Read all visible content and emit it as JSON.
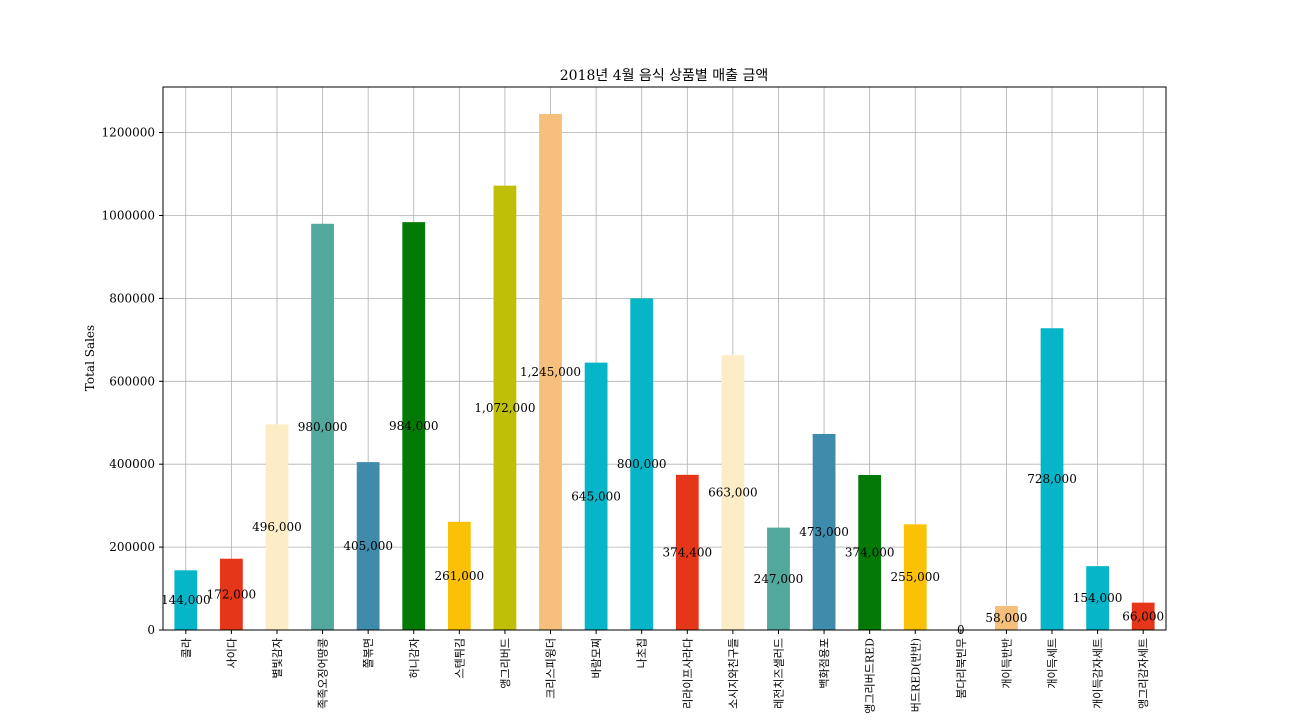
{
  "chart_data": {
    "type": "bar",
    "title": "2018년 4월 음식 상품별 매출 금액",
    "xlabel": "",
    "ylabel": "Total Sales",
    "ylim": [
      0,
      1310000
    ],
    "yticks": [
      0,
      200000,
      400000,
      600000,
      800000,
      1000000,
      1200000
    ],
    "grid": true,
    "categories": [
      "콜라",
      "사이다",
      "별빛감자",
      "족족오징어땅콩",
      "쫄볶면",
      "허니감자",
      "스텐튀김",
      "앵그리버드",
      "크리스피윙더",
      "바람모찌",
      "나초칩",
      "리라이프사라다",
      "소시지와친구들",
      "레전치즈샐러드",
      "백화점용포",
      "앵그리버드RED",
      "버드RED(반반)",
      "붐다리북빈무",
      "개이득반반",
      "개이득세트",
      "개이득감자세트",
      "앵그리감자세트"
    ],
    "values": [
      144000,
      172000,
      496000,
      980000,
      405000,
      984000,
      261000,
      1072000,
      1245000,
      645000,
      800000,
      374400,
      663000,
      247000,
      473000,
      374000,
      255000,
      0,
      58000,
      728000,
      154000,
      66000
    ],
    "value_labels": [
      "144,000",
      "172,000",
      "496,000",
      "980,000",
      "405,000",
      "984,000",
      "261,000",
      "1,072,000",
      "1,245,000",
      "645,000",
      "800,000",
      "374,400",
      "663,000",
      "247,000",
      "473,000",
      "374,000",
      "255,000",
      "0",
      "58,000",
      "728,000",
      "154,000",
      "66,000"
    ],
    "colors": [
      "#06b5c8",
      "#e6361a",
      "#fdedc7",
      "#52a89c",
      "#3f8bac",
      "#037a05",
      "#fbc107",
      "#c0bf08",
      "#f6bf7c",
      "#06b5c8",
      "#06b5c8",
      "#e6361a",
      "#fdedc7",
      "#52a89c",
      "#3f8bac",
      "#037a05",
      "#fbc107",
      "#c0bf08",
      "#f6bf7c",
      "#06b5c8",
      "#06b5c8",
      "#e6361a"
    ]
  }
}
